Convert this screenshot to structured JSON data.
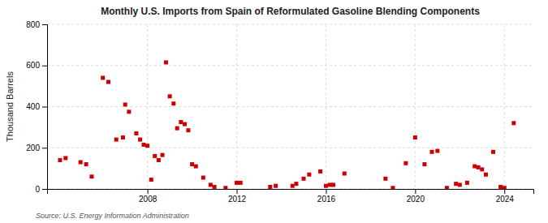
{
  "chart_data": {
    "type": "scatter",
    "title": "Monthly U.S. Imports from Spain of Reformulated Gasoline Blending Components",
    "ylabel": "Thousand Barrels",
    "annotations": [
      "Source: U.S. Energy Information Administration"
    ],
    "color": "#cc0000",
    "marker": "square",
    "grid": true,
    "xlim": [
      2003.5,
      2025.3
    ],
    "xticks": [
      2008,
      2012,
      2016,
      2020,
      2024
    ],
    "ylim": [
      0,
      800
    ],
    "yticks": [
      0,
      200,
      400,
      600,
      800
    ],
    "x": [
      2004.08,
      2004.33,
      2005.0,
      2005.25,
      2005.5,
      2006.0,
      2006.25,
      2006.6,
      2006.9,
      2007.0,
      2007.17,
      2007.5,
      2007.67,
      2007.83,
      2008.0,
      2008.17,
      2008.33,
      2008.5,
      2008.67,
      2008.83,
      2009.0,
      2009.17,
      2009.33,
      2009.5,
      2009.67,
      2009.83,
      2010.0,
      2010.17,
      2010.5,
      2010.83,
      2011.0,
      2011.5,
      2012.0,
      2012.17,
      2013.5,
      2013.75,
      2014.5,
      2014.67,
      2015.0,
      2015.25,
      2015.75,
      2016.0,
      2016.17,
      2016.33,
      2016.83,
      2018.67,
      2019.0,
      2019.58,
      2020.0,
      2020.42,
      2020.75,
      2021.0,
      2021.42,
      2021.83,
      2022.0,
      2022.33,
      2022.67,
      2022.83,
      2023.0,
      2023.17,
      2023.5,
      2023.83,
      2024.0,
      2024.42
    ],
    "values": [
      140,
      150,
      130,
      120,
      60,
      540,
      520,
      240,
      250,
      410,
      375,
      270,
      240,
      215,
      210,
      45,
      160,
      140,
      165,
      615,
      450,
      415,
      295,
      325,
      315,
      285,
      120,
      110,
      55,
      20,
      10,
      5,
      30,
      30,
      10,
      15,
      15,
      25,
      50,
      70,
      85,
      15,
      20,
      20,
      75,
      50,
      5,
      125,
      250,
      120,
      180,
      185,
      5,
      25,
      20,
      30,
      110,
      105,
      95,
      70,
      180,
      10,
      5,
      320
    ]
  }
}
